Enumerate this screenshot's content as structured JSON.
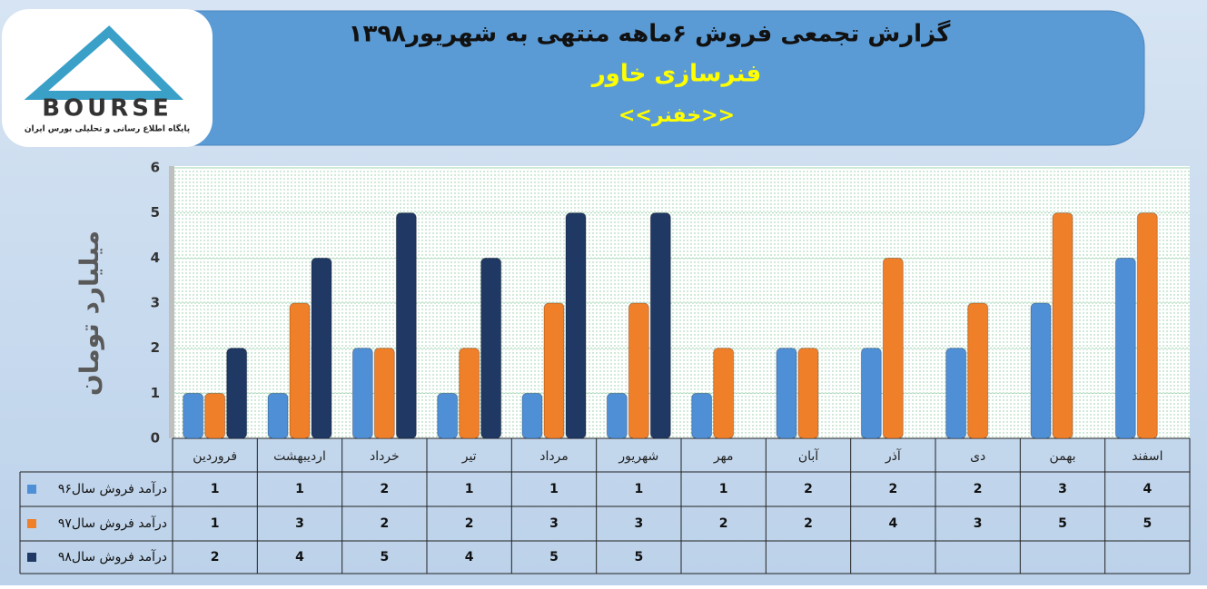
{
  "logo": {
    "name": "BOURSE",
    "tagline": "پایگاه اطلاع رسانی و تحلیلی بورس ایران"
  },
  "chart_data": {
    "type": "bar",
    "title": "گزارش تجمعی فروش ۶ماهه منتهی به شهریور۱۳۹۸",
    "subtitle": "فنرسازی خاور",
    "symbol": "<<خفنر>>",
    "y_label": "میلیارد تومان",
    "categories": [
      "فروردین",
      "اردیبهشت",
      "خرداد",
      "تیر",
      "مرداد",
      "شهریور",
      "مهر",
      "آبان",
      "آذر",
      "دی",
      "بهمن",
      "اسفند"
    ],
    "series": [
      {
        "name": "درآمد فروش سال۹۶",
        "color": "#4f8fd6",
        "values": [
          1,
          1,
          2,
          1,
          1,
          1,
          1,
          2,
          2,
          2,
          3,
          4
        ]
      },
      {
        "name": "درآمد فروش سال۹۷",
        "color": "#f07f2a",
        "values": [
          1,
          3,
          2,
          2,
          3,
          3,
          2,
          2,
          4,
          3,
          5,
          5
        ]
      },
      {
        "name": "درآمد فروش سال۹۸",
        "color": "#1f3864",
        "values": [
          2,
          4,
          5,
          4,
          5,
          5,
          null,
          null,
          null,
          null,
          null,
          null
        ]
      }
    ],
    "ylim": [
      0,
      6
    ],
    "yticks": [
      0,
      1,
      2,
      3,
      4,
      5,
      6
    ],
    "grid": true
  }
}
